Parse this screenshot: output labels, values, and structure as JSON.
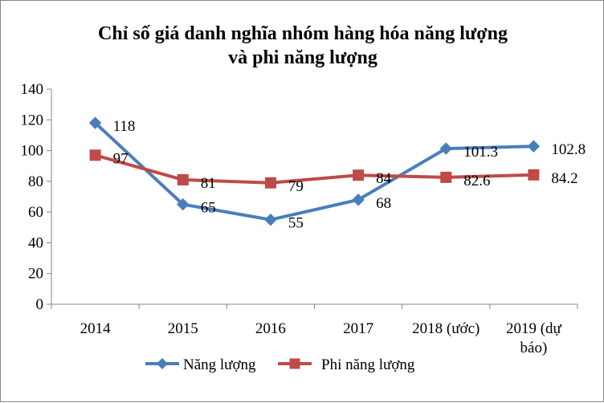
{
  "chart_data": {
    "type": "line",
    "title_line1": "Chỉ số giá danh nghĩa nhóm hàng hóa năng lượng",
    "title_line2": "và phi năng lượng",
    "categories": [
      "2014",
      "2015",
      "2016",
      "2017",
      "2018 (ước)",
      "2019 (dự báo)"
    ],
    "category_lines": [
      [
        "2014"
      ],
      [
        "2015"
      ],
      [
        "2016"
      ],
      [
        "2017"
      ],
      [
        "2018 (ước)"
      ],
      [
        "2019 (dự",
        "báo)"
      ]
    ],
    "ylim": [
      0,
      140
    ],
    "yticks": [
      0,
      20,
      40,
      60,
      80,
      100,
      120,
      140
    ],
    "grid": false,
    "legend_position": "bottom",
    "series": [
      {
        "name": "Năng lượng",
        "color": "#4a7ebb",
        "marker": "diamond",
        "values": [
          118,
          65,
          55,
          68,
          101.3,
          102.8
        ],
        "labels": [
          "118",
          "65",
          "55",
          "68",
          "101.3",
          "102.8"
        ]
      },
      {
        "name": "Phi năng lượng",
        "color": "#be4b48",
        "marker": "square",
        "values": [
          97,
          81,
          79,
          84,
          82.6,
          84.2
        ],
        "labels": [
          "97",
          "81",
          "79",
          "84",
          "82.6",
          "84.2"
        ]
      }
    ]
  }
}
